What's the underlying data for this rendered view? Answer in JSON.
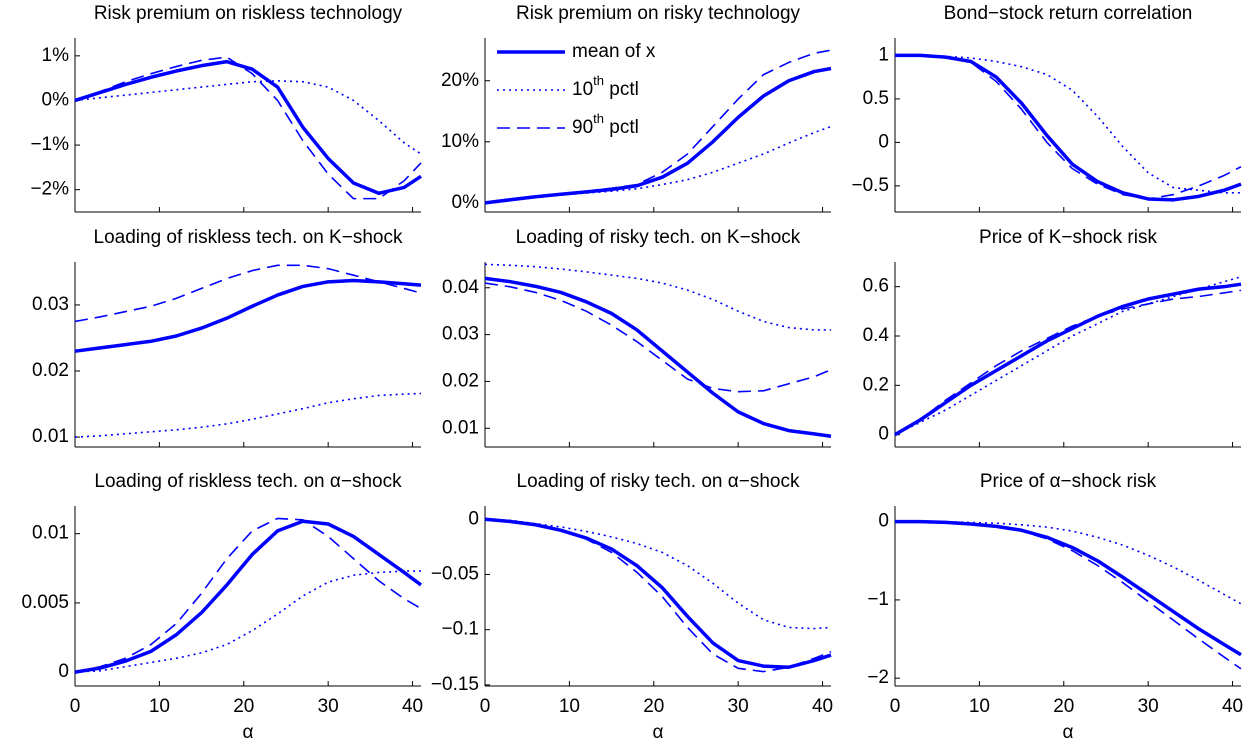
{
  "chart_data": [
    {
      "type": "line",
      "title": "Risk premium on riskless technology",
      "x": [
        0,
        3,
        6,
        9,
        12,
        15,
        18,
        21,
        24,
        27,
        30,
        33,
        36,
        39,
        41
      ],
      "xlim": [
        0,
        41
      ],
      "xticks": [
        0,
        10,
        20,
        30,
        40
      ],
      "show_xtick_labels": false,
      "ylim": [
        -2.5,
        1.4
      ],
      "yticks": [
        {
          "value": 1,
          "label": "1%"
        },
        {
          "value": 0,
          "label": "0%"
        },
        {
          "value": -1,
          "label": "−1%"
        },
        {
          "value": -2,
          "label": "−2%"
        }
      ],
      "series": [
        {
          "color": "#0000ff",
          "style": "solid",
          "values": [
            0,
            0.18,
            0.36,
            0.52,
            0.66,
            0.78,
            0.87,
            0.7,
            0.3,
            -0.6,
            -1.3,
            -1.85,
            -2.08,
            -1.95,
            -1.7
          ]
        },
        {
          "color": "#0000ff",
          "style": "dotted",
          "values": [
            0,
            0.06,
            0.12,
            0.18,
            0.24,
            0.3,
            0.36,
            0.42,
            0.44,
            0.42,
            0.3,
            0.0,
            -0.45,
            -0.95,
            -1.2
          ]
        },
        {
          "color": "#0000ff",
          "style": "dashed",
          "values": [
            0,
            0.2,
            0.42,
            0.6,
            0.76,
            0.9,
            0.97,
            0.6,
            0.0,
            -0.9,
            -1.65,
            -2.2,
            -2.2,
            -1.8,
            -1.4
          ]
        }
      ]
    },
    {
      "type": "line",
      "title": "Risk premium on risky technology",
      "x": [
        0,
        3,
        6,
        9,
        12,
        15,
        18,
        21,
        24,
        27,
        30,
        33,
        36,
        39,
        41
      ],
      "xlim": [
        0,
        41
      ],
      "xticks": [
        0,
        10,
        20,
        30,
        40
      ],
      "show_xtick_labels": false,
      "ylim": [
        -1.5,
        27
      ],
      "yticks": [
        {
          "value": 20,
          "label": "20%"
        },
        {
          "value": 10,
          "label": "10%"
        },
        {
          "value": 0,
          "label": "0%"
        }
      ],
      "legend": "upper left",
      "series": [
        {
          "name": "mean of x",
          "color": "#0000ff",
          "style": "solid",
          "values": [
            0,
            0.5,
            1,
            1.4,
            1.8,
            2.2,
            2.8,
            4.2,
            6.5,
            10,
            14,
            17.5,
            20,
            21.5,
            22
          ]
        },
        {
          "name": "10th pctl",
          "color": "#0000ff",
          "style": "dotted",
          "values": [
            0,
            0.5,
            1,
            1.3,
            1.6,
            1.9,
            2.3,
            3,
            3.8,
            5,
            6.5,
            8,
            9.8,
            11.5,
            12.5
          ]
        },
        {
          "name": "90th pctl",
          "color": "#0000ff",
          "style": "dashed",
          "values": [
            0,
            0.5,
            1,
            1.4,
            1.9,
            2.4,
            3,
            5,
            8,
            12.5,
            17,
            21,
            23,
            24.5,
            25
          ]
        }
      ]
    },
    {
      "type": "line",
      "title": "Bond−stock return correlation",
      "x": [
        0,
        3,
        6,
        9,
        12,
        15,
        18,
        21,
        24,
        27,
        30,
        33,
        36,
        39,
        41
      ],
      "xlim": [
        0,
        41
      ],
      "xticks": [
        0,
        10,
        20,
        30,
        40
      ],
      "show_xtick_labels": false,
      "ylim": [
        -0.8,
        1.2
      ],
      "yticks": [
        1,
        0.5,
        0,
        {
          "value": -0.5,
          "label": "−0.5"
        }
      ],
      "series": [
        {
          "color": "#0000ff",
          "style": "solid",
          "values": [
            1,
            1,
            0.98,
            0.93,
            0.75,
            0.45,
            0.08,
            -0.25,
            -0.45,
            -0.58,
            -0.65,
            -0.66,
            -0.62,
            -0.55,
            -0.48
          ]
        },
        {
          "color": "#0000ff",
          "style": "dotted",
          "values": [
            1,
            1,
            0.99,
            0.97,
            0.93,
            0.87,
            0.78,
            0.6,
            0.3,
            -0.05,
            -0.35,
            -0.52,
            -0.55,
            -0.58,
            -0.58
          ]
        },
        {
          "color": "#0000ff",
          "style": "dashed",
          "values": [
            1,
            1,
            0.98,
            0.92,
            0.7,
            0.38,
            0.0,
            -0.3,
            -0.48,
            -0.6,
            -0.65,
            -0.6,
            -0.5,
            -0.38,
            -0.28
          ]
        }
      ]
    },
    {
      "type": "line",
      "title": "Loading of riskless tech. on K−shock",
      "x": [
        0,
        3,
        6,
        9,
        12,
        15,
        18,
        21,
        24,
        27,
        30,
        33,
        36,
        39,
        41
      ],
      "xlim": [
        0,
        41
      ],
      "xticks": [
        0,
        10,
        20,
        30,
        40
      ],
      "show_xtick_labels": false,
      "ylim": [
        0.0085,
        0.0365
      ],
      "yticks": [
        0.03,
        0.02,
        0.01
      ],
      "series": [
        {
          "color": "#0000ff",
          "style": "solid",
          "values": [
            0.023,
            0.0235,
            0.024,
            0.0245,
            0.0253,
            0.0265,
            0.028,
            0.0298,
            0.0315,
            0.0328,
            0.0335,
            0.0337,
            0.0335,
            0.0332,
            0.033
          ]
        },
        {
          "color": "#0000ff",
          "style": "dotted",
          "values": [
            0.01,
            0.0102,
            0.0105,
            0.0108,
            0.0111,
            0.0115,
            0.012,
            0.0127,
            0.0135,
            0.0143,
            0.0152,
            0.0158,
            0.0163,
            0.0165,
            0.0166
          ]
        },
        {
          "color": "#0000ff",
          "style": "dashed",
          "values": [
            0.0275,
            0.0282,
            0.029,
            0.0298,
            0.031,
            0.0325,
            0.034,
            0.0352,
            0.036,
            0.036,
            0.0355,
            0.0345,
            0.0335,
            0.0325,
            0.0318
          ]
        }
      ]
    },
    {
      "type": "line",
      "title": "Loading of risky tech. on K−shock",
      "x": [
        0,
        3,
        6,
        9,
        12,
        15,
        18,
        21,
        24,
        27,
        30,
        33,
        36,
        39,
        41
      ],
      "xlim": [
        0,
        41
      ],
      "xticks": [
        0,
        10,
        20,
        30,
        40
      ],
      "show_xtick_labels": false,
      "ylim": [
        0.006,
        0.0455
      ],
      "yticks": [
        0.04,
        0.03,
        0.02,
        0.01
      ],
      "series": [
        {
          "color": "#0000ff",
          "style": "solid",
          "values": [
            0.042,
            0.0413,
            0.0403,
            0.039,
            0.037,
            0.0345,
            0.031,
            0.0265,
            0.022,
            0.0175,
            0.0135,
            0.011,
            0.0095,
            0.0088,
            0.0083
          ]
        },
        {
          "color": "#0000ff",
          "style": "dotted",
          "values": [
            0.045,
            0.0448,
            0.0445,
            0.044,
            0.0434,
            0.0427,
            0.042,
            0.041,
            0.0395,
            0.0375,
            0.035,
            0.0328,
            0.0315,
            0.031,
            0.031
          ]
        },
        {
          "color": "#0000ff",
          "style": "dashed",
          "values": [
            0.041,
            0.0402,
            0.039,
            0.0373,
            0.035,
            0.032,
            0.0285,
            0.0245,
            0.0205,
            0.0185,
            0.0178,
            0.018,
            0.0195,
            0.021,
            0.0225
          ]
        }
      ]
    },
    {
      "type": "line",
      "title": "Price of K−shock risk",
      "x": [
        0,
        3,
        6,
        9,
        12,
        15,
        18,
        21,
        24,
        27,
        30,
        33,
        36,
        39,
        41
      ],
      "xlim": [
        0,
        41
      ],
      "xticks": [
        0,
        10,
        20,
        30,
        40
      ],
      "show_xtick_labels": false,
      "ylim": [
        -0.05,
        0.7
      ],
      "yticks": [
        0.6,
        0.4,
        0.2,
        0
      ],
      "series": [
        {
          "color": "#0000ff",
          "style": "solid",
          "values": [
            0,
            0.06,
            0.13,
            0.2,
            0.26,
            0.32,
            0.38,
            0.43,
            0.48,
            0.52,
            0.55,
            0.57,
            0.59,
            0.6,
            0.61
          ]
        },
        {
          "color": "#0000ff",
          "style": "dotted",
          "values": [
            0,
            0.05,
            0.1,
            0.16,
            0.22,
            0.28,
            0.34,
            0.4,
            0.45,
            0.5,
            0.53,
            0.56,
            0.59,
            0.62,
            0.64
          ]
        },
        {
          "color": "#0000ff",
          "style": "dashed",
          "values": [
            0,
            0.06,
            0.14,
            0.21,
            0.28,
            0.34,
            0.39,
            0.44,
            0.48,
            0.51,
            0.53,
            0.55,
            0.56,
            0.575,
            0.585
          ]
        }
      ]
    },
    {
      "type": "line",
      "title": "Loading of riskless tech. on α−shock",
      "xlabel": "α",
      "x": [
        0,
        3,
        6,
        9,
        12,
        15,
        18,
        21,
        24,
        27,
        30,
        33,
        36,
        39,
        41
      ],
      "xlim": [
        0,
        41
      ],
      "xticks": [
        0,
        10,
        20,
        30,
        40
      ],
      "show_xtick_labels": true,
      "ylim": [
        -0.001,
        0.012
      ],
      "yticks": [
        0.01,
        0.005,
        0
      ],
      "series": [
        {
          "color": "#0000ff",
          "style": "solid",
          "values": [
            0,
            0.0003,
            0.0008,
            0.0015,
            0.0027,
            0.0043,
            0.0063,
            0.0085,
            0.0102,
            0.0109,
            0.0107,
            0.0098,
            0.0085,
            0.0072,
            0.0063
          ]
        },
        {
          "color": "#0000ff",
          "style": "dotted",
          "values": [
            0,
            0.0001,
            0.0004,
            0.0007,
            0.001,
            0.0014,
            0.002,
            0.003,
            0.0042,
            0.0055,
            0.0065,
            0.007,
            0.0072,
            0.0073,
            0.0073
          ]
        },
        {
          "color": "#0000ff",
          "style": "dashed",
          "values": [
            0,
            0.0004,
            0.001,
            0.002,
            0.0035,
            0.0057,
            0.0082,
            0.0102,
            0.0111,
            0.011,
            0.0098,
            0.0082,
            0.0066,
            0.0053,
            0.0046
          ]
        }
      ]
    },
    {
      "type": "line",
      "title": "Loading of risky tech. on α−shock",
      "xlabel": "α",
      "x": [
        0,
        3,
        6,
        9,
        12,
        15,
        18,
        21,
        24,
        27,
        30,
        33,
        36,
        39,
        41
      ],
      "xlim": [
        0,
        41
      ],
      "xticks": [
        0,
        10,
        20,
        30,
        40
      ],
      "show_xtick_labels": true,
      "ylim": [
        -0.151,
        0.012
      ],
      "yticks": [
        0,
        {
          "value": -0.05,
          "label": "−0.05"
        },
        {
          "value": -0.1,
          "label": "−0.1"
        },
        {
          "value": -0.15,
          "label": "−0.15"
        }
      ],
      "series": [
        {
          "color": "#0000ff",
          "style": "solid",
          "values": [
            0,
            -0.002,
            -0.005,
            -0.01,
            -0.017,
            -0.027,
            -0.042,
            -0.062,
            -0.088,
            -0.112,
            -0.128,
            -0.133,
            -0.134,
            -0.128,
            -0.123
          ]
        },
        {
          "color": "#0000ff",
          "style": "dotted",
          "values": [
            0,
            -0.001,
            -0.004,
            -0.007,
            -0.011,
            -0.016,
            -0.022,
            -0.03,
            -0.042,
            -0.058,
            -0.076,
            -0.091,
            -0.098,
            -0.099,
            -0.098
          ]
        },
        {
          "color": "#0000ff",
          "style": "dashed",
          "values": [
            0,
            -0.002,
            -0.005,
            -0.01,
            -0.018,
            -0.03,
            -0.048,
            -0.07,
            -0.098,
            -0.122,
            -0.135,
            -0.138,
            -0.134,
            -0.126,
            -0.12
          ]
        }
      ]
    },
    {
      "type": "line",
      "title": "Price of α−shock risk",
      "xlabel": "α",
      "x": [
        0,
        3,
        6,
        9,
        12,
        15,
        18,
        21,
        24,
        27,
        30,
        33,
        36,
        39,
        41
      ],
      "xlim": [
        0,
        41
      ],
      "xticks": [
        0,
        10,
        20,
        30,
        40
      ],
      "show_xtick_labels": true,
      "ylim": [
        -2.1,
        0.2
      ],
      "yticks": [
        0,
        {
          "value": -1,
          "label": "−1"
        },
        {
          "value": -2,
          "label": "−2"
        }
      ],
      "series": [
        {
          "color": "#0000ff",
          "style": "solid",
          "values": [
            0,
            0,
            -0.01,
            -0.03,
            -0.06,
            -0.11,
            -0.2,
            -0.33,
            -0.5,
            -0.71,
            -0.93,
            -1.15,
            -1.37,
            -1.57,
            -1.7
          ]
        },
        {
          "color": "#0000ff",
          "style": "dotted",
          "values": [
            0,
            0,
            0,
            -0.01,
            -0.02,
            -0.04,
            -0.07,
            -0.12,
            -0.2,
            -0.3,
            -0.43,
            -0.58,
            -0.75,
            -0.93,
            -1.05
          ]
        },
        {
          "color": "#0000ff",
          "style": "dashed",
          "values": [
            0,
            0,
            -0.01,
            -0.03,
            -0.06,
            -0.12,
            -0.22,
            -0.37,
            -0.56,
            -0.78,
            -1.02,
            -1.26,
            -1.5,
            -1.73,
            -1.88
          ]
        }
      ]
    }
  ]
}
